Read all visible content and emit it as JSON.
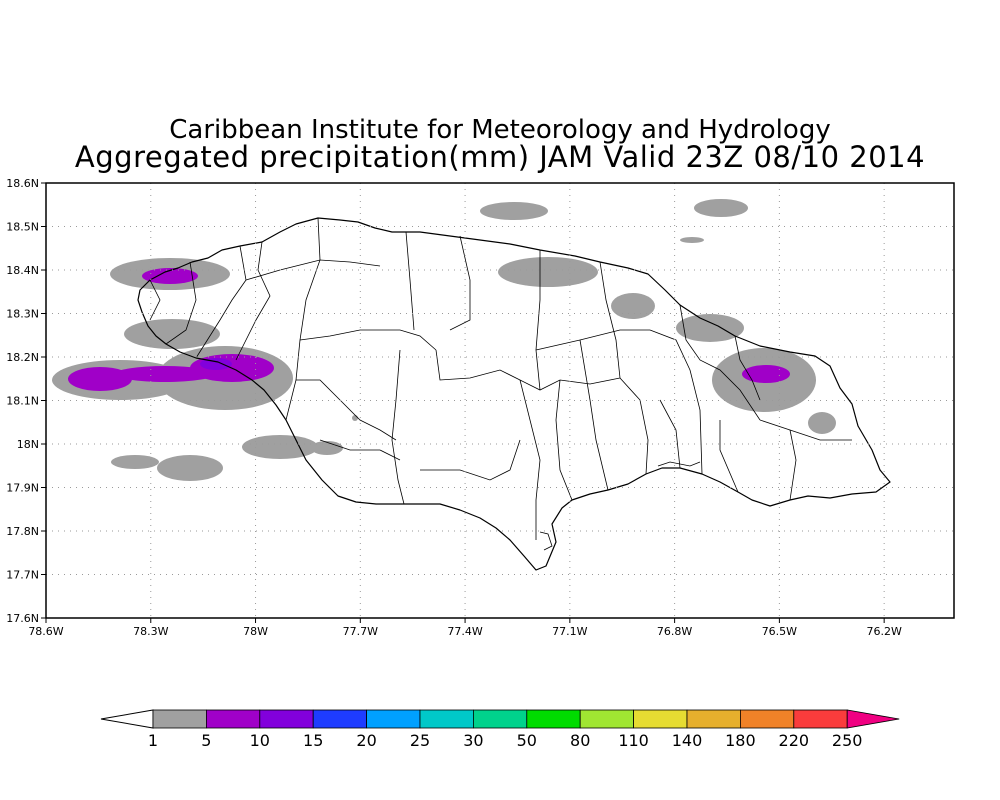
{
  "title": {
    "line1": "Caribbean Institute for Meteorology and Hydrology",
    "line2": "Aggregated precipitation(mm) JAM Valid 23Z 08/10 2014"
  },
  "map": {
    "lon_range": [
      -78.6,
      -76.0
    ],
    "lat_range": [
      17.6,
      18.6
    ],
    "x_ticks": [
      {
        "value": -78.6,
        "label": "78.6W"
      },
      {
        "value": -78.3,
        "label": "78.3W"
      },
      {
        "value": -78.0,
        "label": "78W"
      },
      {
        "value": -77.7,
        "label": "77.7W"
      },
      {
        "value": -77.4,
        "label": "77.4W"
      },
      {
        "value": -77.1,
        "label": "77.1W"
      },
      {
        "value": -76.8,
        "label": "76.8W"
      },
      {
        "value": -76.5,
        "label": "76.5W"
      },
      {
        "value": -76.2,
        "label": "76.2W"
      }
    ],
    "y_ticks": [
      {
        "value": 18.6,
        "label": "18.6N"
      },
      {
        "value": 18.5,
        "label": "18.5N"
      },
      {
        "value": 18.4,
        "label": "18.4N"
      },
      {
        "value": 18.3,
        "label": "18.3N"
      },
      {
        "value": 18.2,
        "label": "18.2N"
      },
      {
        "value": 18.1,
        "label": "18.1N"
      },
      {
        "value": 18.0,
        "label": "18N"
      },
      {
        "value": 17.9,
        "label": "17.9N"
      },
      {
        "value": 17.8,
        "label": "17.8N"
      },
      {
        "value": 17.7,
        "label": "17.7N"
      },
      {
        "value": 17.6,
        "label": "17.6N"
      }
    ],
    "grid": "dotted"
  },
  "colorbar": {
    "colors": [
      "#a0a0a0",
      "#a000c8",
      "#8200dc",
      "#1e3cff",
      "#00a0ff",
      "#00c8c8",
      "#00d28c",
      "#00dc00",
      "#a0e632",
      "#e6dc32",
      "#e6af2d",
      "#f08228",
      "#fa3c3c",
      "#f00082"
    ],
    "labels": [
      "1",
      "5",
      "10",
      "15",
      "20",
      "25",
      "30",
      "50",
      "80",
      "110",
      "140",
      "180",
      "220",
      "250"
    ]
  },
  "colors": {
    "light_rain": "#a0a0a0",
    "moderate_rain": "#a000c8",
    "heavier_rain": "#8200dc",
    "coast": "#000000"
  }
}
